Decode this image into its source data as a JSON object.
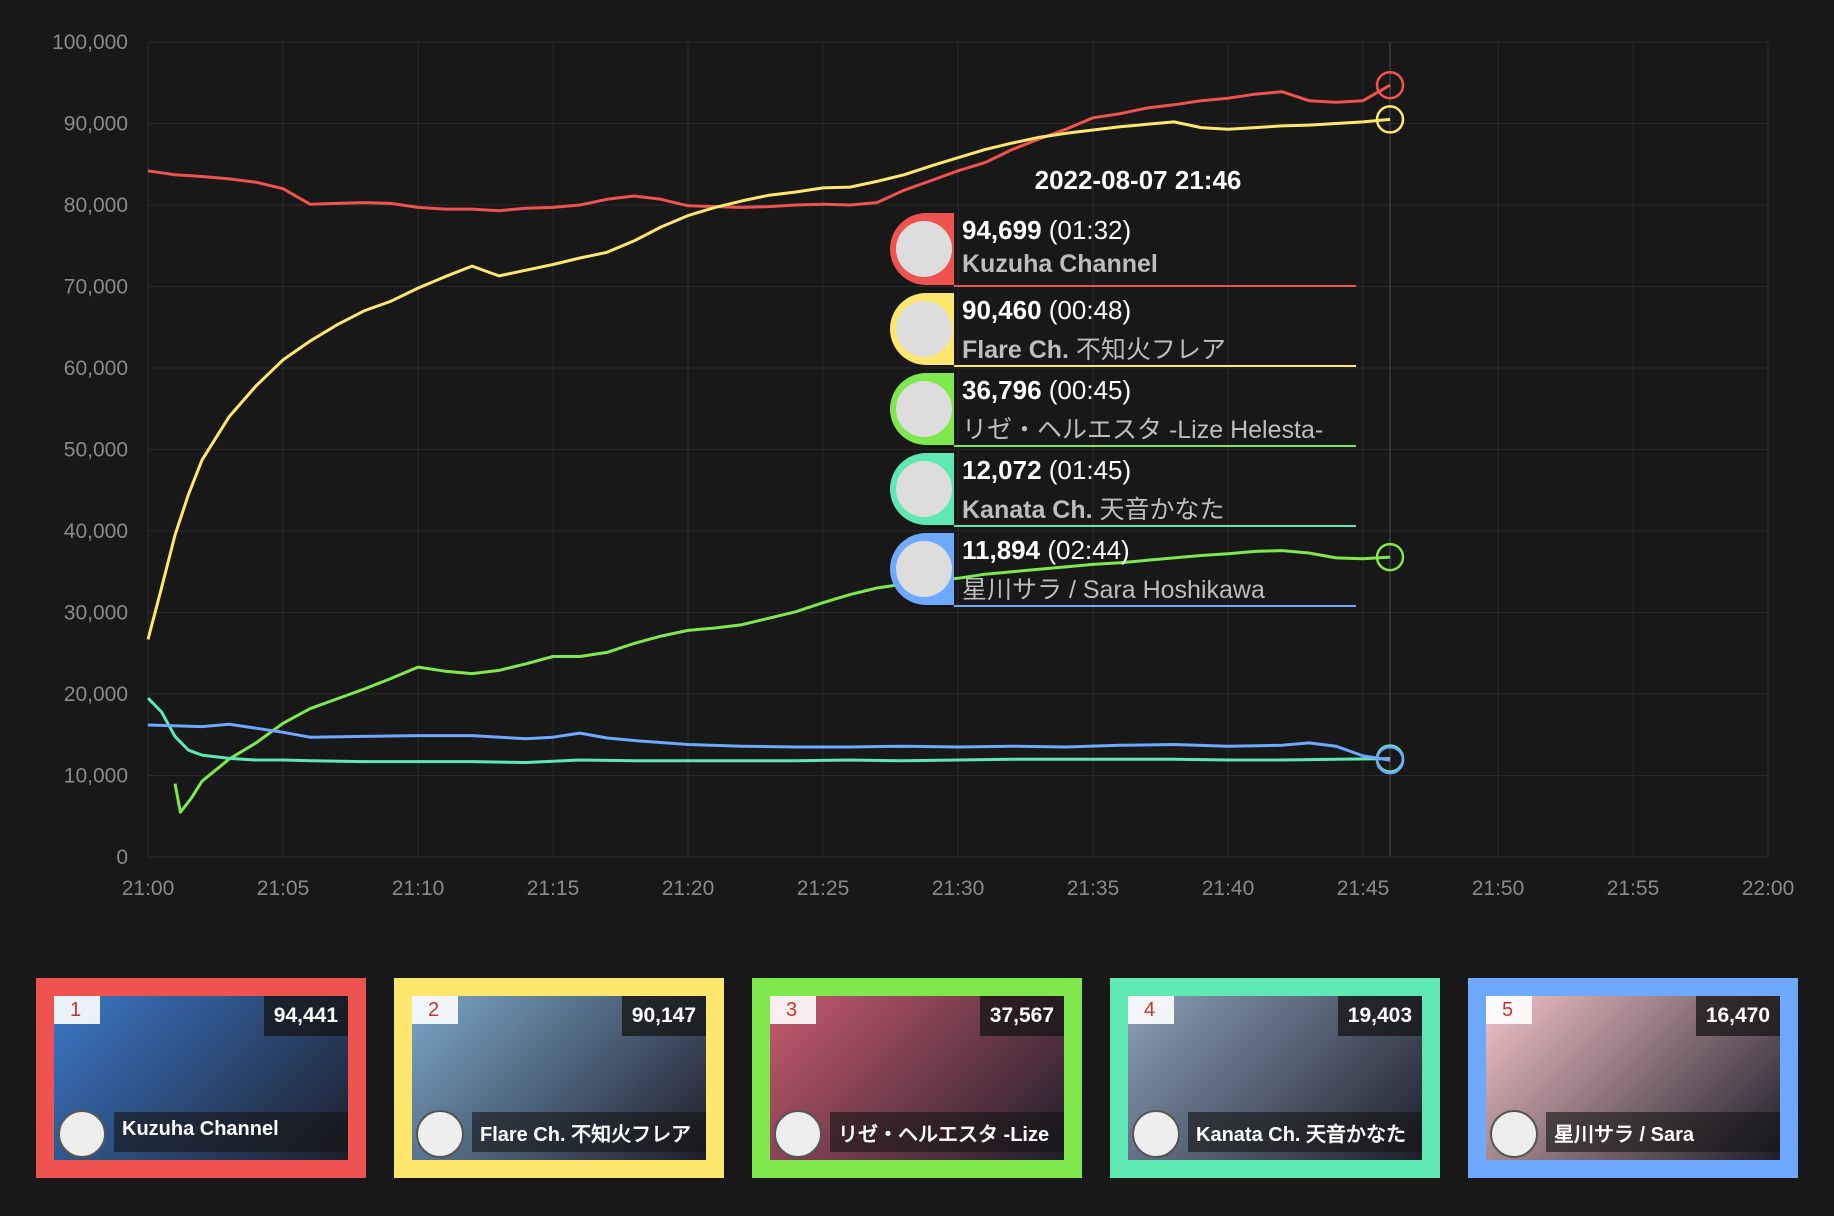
{
  "chart_data": {
    "type": "line",
    "x_ticks": [
      "21:00",
      "21:05",
      "21:10",
      "21:15",
      "21:20",
      "21:25",
      "21:30",
      "21:35",
      "21:40",
      "21:45",
      "21:50",
      "21:55",
      "22:00"
    ],
    "xlim_minutes": [
      0,
      60
    ],
    "y_ticks": [
      "0",
      "10,000",
      "20,000",
      "30,000",
      "40,000",
      "50,000",
      "60,000",
      "70,000",
      "80,000",
      "90,000",
      "100,000"
    ],
    "ylim": [
      0,
      100000
    ],
    "grid": true,
    "series": [
      {
        "name": "Kuzuha Channel",
        "color": "#ef5350",
        "x": [
          0,
          1,
          2,
          3,
          4,
          5,
          6,
          7,
          8,
          9,
          10,
          11,
          12,
          13,
          14,
          15,
          16,
          17,
          18,
          19,
          20,
          21,
          22,
          23,
          24,
          25,
          26,
          27,
          28,
          29,
          30,
          31,
          32,
          33,
          34,
          35,
          36,
          37,
          38,
          39,
          40,
          41,
          42,
          43,
          44,
          45,
          46
        ],
        "y": [
          84200,
          83700,
          83500,
          83200,
          82800,
          82000,
          80100,
          80200,
          80300,
          80200,
          79700,
          79500,
          79500,
          79300,
          79600,
          79700,
          80000,
          80700,
          81100,
          80700,
          79900,
          79800,
          79700,
          79800,
          80000,
          80100,
          80000,
          80300,
          81800,
          83000,
          84200,
          85200,
          86800,
          88100,
          89300,
          90700,
          91200,
          91900,
          92300,
          92800,
          93100,
          93600,
          93900,
          92800,
          92600,
          92800,
          94700
        ]
      },
      {
        "name": "Flare Ch. 不知火フレア",
        "color": "#ffe66d",
        "x": [
          0,
          0.5,
          1,
          1.5,
          2,
          3,
          4,
          5,
          6,
          7,
          8,
          9,
          10,
          11,
          12,
          13,
          14,
          15,
          16,
          17,
          18,
          19,
          20,
          21,
          22,
          23,
          24,
          25,
          26,
          27,
          28,
          29,
          30,
          31,
          32,
          33,
          34,
          35,
          36,
          37,
          38,
          39,
          40,
          41,
          42,
          43,
          44,
          45,
          46
        ],
        "y": [
          26700,
          33000,
          39500,
          44500,
          48700,
          54000,
          57800,
          61000,
          63300,
          65300,
          67000,
          68200,
          69800,
          71200,
          72500,
          71300,
          72000,
          72700,
          73500,
          74200,
          75600,
          77300,
          78700,
          79700,
          80500,
          81200,
          81600,
          82100,
          82200,
          82900,
          83700,
          84800,
          85800,
          86800,
          87600,
          88300,
          88800,
          89200,
          89600,
          89900,
          90200,
          89500,
          89300,
          89500,
          89700,
          89800,
          90000,
          90200,
          90500
        ]
      },
      {
        "name": "リゼ・ヘルエスタ -Lize Helesta-",
        "color": "#7ee84c",
        "x": [
          1,
          1.2,
          1.6,
          2,
          3,
          4,
          5,
          6,
          7,
          8,
          9,
          10,
          11,
          12,
          13,
          14,
          15,
          16,
          17,
          18,
          19,
          20,
          21,
          22,
          23,
          24,
          25,
          26,
          27,
          28,
          29,
          30,
          31,
          32,
          33,
          34,
          35,
          36,
          37,
          38,
          39,
          40,
          41,
          42,
          43,
          44,
          45,
          46
        ],
        "y": [
          9000,
          5500,
          7200,
          9300,
          12000,
          14000,
          16400,
          18200,
          19400,
          20600,
          21900,
          23300,
          22800,
          22500,
          22900,
          23700,
          24600,
          24600,
          25100,
          26200,
          27100,
          27800,
          28100,
          28500,
          29300,
          30100,
          31200,
          32200,
          33000,
          33500,
          33800,
          34200,
          34700,
          35000,
          35300,
          35600,
          35900,
          36100,
          36400,
          36700,
          37000,
          37200,
          37500,
          37600,
          37300,
          36700,
          36600,
          36796
        ]
      },
      {
        "name": "Kanata Ch. 天音かなた",
        "color": "#5ee8b3",
        "x": [
          0,
          0.5,
          1,
          1.5,
          2,
          3,
          4,
          5,
          6,
          8,
          10,
          12,
          14,
          16,
          18,
          20,
          22,
          24,
          26,
          28,
          30,
          32,
          34,
          36,
          38,
          40,
          42,
          44,
          46
        ],
        "y": [
          19500,
          17800,
          14800,
          13100,
          12500,
          12100,
          11900,
          11900,
          11800,
          11700,
          11700,
          11700,
          11600,
          11900,
          11800,
          11800,
          11800,
          11800,
          11900,
          11800,
          11900,
          12000,
          12000,
          12000,
          12000,
          11900,
          11900,
          12000,
          12072
        ]
      },
      {
        "name": "星川サラ / Sara Hoshikawa",
        "color": "#6fa8ff",
        "x": [
          0,
          2,
          3,
          4,
          5,
          6,
          8,
          10,
          12,
          14,
          15,
          16,
          17,
          18,
          20,
          22,
          24,
          26,
          28,
          30,
          32,
          34,
          36,
          38,
          40,
          42,
          43,
          44,
          45,
          46
        ],
        "y": [
          16200,
          16000,
          16300,
          15800,
          15300,
          14700,
          14800,
          14900,
          14900,
          14500,
          14700,
          15200,
          14600,
          14300,
          13800,
          13600,
          13500,
          13500,
          13600,
          13500,
          13600,
          13500,
          13700,
          13800,
          13600,
          13700,
          14000,
          13600,
          12400,
          11894
        ]
      }
    ],
    "tooltip": {
      "time": "2022-08-07 21:46",
      "rows": [
        {
          "value": "94,699",
          "duration": "(01:32)",
          "name_bold": "Kuzuha Channel",
          "name_rest": "",
          "color": "#ef5350"
        },
        {
          "value": "90,460",
          "duration": "(00:48)",
          "name_bold": "Flare Ch.",
          "name_rest": " 不知火フレア",
          "color": "#ffe66d"
        },
        {
          "value": "36,796",
          "duration": "(00:45)",
          "name_bold": "",
          "name_rest": "リゼ・ヘルエスタ -Lize Helesta-",
          "color": "#7ee84c"
        },
        {
          "value": "12,072",
          "duration": "(01:45)",
          "name_bold": "Kanata Ch.",
          "name_rest": " 天音かなた",
          "color": "#5ee8b3"
        },
        {
          "value": "11,894",
          "duration": "(02:44)",
          "name_bold": "",
          "name_rest": "星川サラ / Sara Hoshikawa",
          "color": "#6fa8ff"
        }
      ]
    }
  },
  "cards": [
    {
      "rank": "1",
      "viewers": "94,441",
      "name": "Kuzuha Channel",
      "color": "#ef5350",
      "thumb": "#3a78c8"
    },
    {
      "rank": "2",
      "viewers": "90,147",
      "name": "Flare Ch. 不知火フレア",
      "color": "#ffe66d",
      "thumb": "#7aa6c8"
    },
    {
      "rank": "3",
      "viewers": "37,567",
      "name": "リゼ・ヘルエスタ -Lize",
      "color": "#7ee84c",
      "thumb": "#c85a6e"
    },
    {
      "rank": "4",
      "viewers": "19,403",
      "name": "Kanata Ch. 天音かなた",
      "color": "#5ee8b3",
      "thumb": "#8aa0b8"
    },
    {
      "rank": "5",
      "viewers": "16,470",
      "name": "星川サラ / Sara",
      "color": "#6fa8ff",
      "thumb": "#f3c3c8"
    }
  ]
}
